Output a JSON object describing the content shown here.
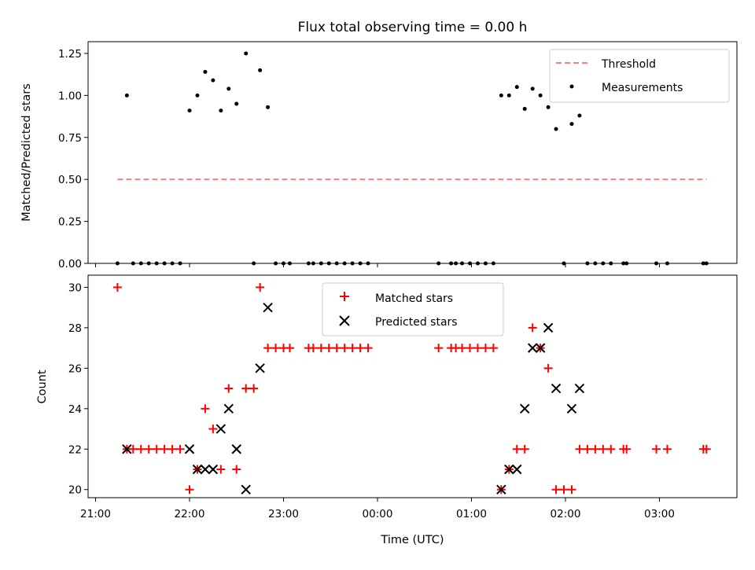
{
  "chart_data": [
    {
      "type": "scatter",
      "title": "Flux total observing time = 0.00 h",
      "xlabel": "",
      "ylabel": "Matched/Predicted stars",
      "xlim": [
        "21:00",
        "03:45"
      ],
      "ylim": [
        0,
        1.32
      ],
      "y_ticks": [
        "0.00",
        "0.25",
        "0.50",
        "0.75",
        "1.00",
        "1.25"
      ],
      "legend": {
        "placement": "top-right",
        "entries": [
          "Threshold",
          "Measurements"
        ]
      },
      "threshold": {
        "name": "Threshold",
        "value": 0.5,
        "x_start": "21:14",
        "x_end": "03:30",
        "color": "#ff7f7f"
      },
      "series": [
        {
          "name": "Measurements",
          "color": "#000000",
          "marker": "dot",
          "points": [
            [
              "21:14",
              0
            ],
            [
              "21:20",
              1.0
            ],
            [
              "21:24",
              0
            ],
            [
              "21:29",
              0
            ],
            [
              "21:34",
              0
            ],
            [
              "21:39",
              0
            ],
            [
              "21:44",
              0
            ],
            [
              "21:49",
              0
            ],
            [
              "21:54",
              0
            ],
            [
              "22:00",
              0.91
            ],
            [
              "22:05",
              1.0
            ],
            [
              "22:10",
              1.14
            ],
            [
              "22:15",
              1.09
            ],
            [
              "22:20",
              0.91
            ],
            [
              "22:25",
              1.04
            ],
            [
              "22:30",
              0.95
            ],
            [
              "22:36",
              1.25
            ],
            [
              "22:41",
              0
            ],
            [
              "22:45",
              1.15
            ],
            [
              "22:50",
              0.93
            ],
            [
              "22:55",
              0
            ],
            [
              "23:00",
              0
            ],
            [
              "23:04",
              0
            ],
            [
              "23:16",
              0
            ],
            [
              "23:19",
              0
            ],
            [
              "23:24",
              0
            ],
            [
              "23:29",
              0
            ],
            [
              "23:34",
              0
            ],
            [
              "23:39",
              0
            ],
            [
              "23:44",
              0
            ],
            [
              "23:49",
              0
            ],
            [
              "23:54",
              0
            ],
            [
              "00:39",
              0
            ],
            [
              "00:47",
              0
            ],
            [
              "00:50",
              0
            ],
            [
              "00:54",
              0
            ],
            [
              "00:59",
              0
            ],
            [
              "01:04",
              0
            ],
            [
              "01:09",
              0
            ],
            [
              "01:14",
              0
            ],
            [
              "01:19",
              1.0
            ],
            [
              "01:24",
              1.0
            ],
            [
              "01:29",
              1.05
            ],
            [
              "01:34",
              0.92
            ],
            [
              "01:39",
              1.04
            ],
            [
              "01:44",
              1.0
            ],
            [
              "01:49",
              0.93
            ],
            [
              "01:54",
              0.8
            ],
            [
              "01:59",
              0
            ],
            [
              "02:04",
              0.83
            ],
            [
              "02:09",
              0.88
            ],
            [
              "02:14",
              0
            ],
            [
              "02:19",
              0
            ],
            [
              "02:24",
              0
            ],
            [
              "02:29",
              0
            ],
            [
              "02:37",
              0
            ],
            [
              "02:39",
              0
            ],
            [
              "02:58",
              0
            ],
            [
              "03:05",
              0
            ],
            [
              "03:28",
              0
            ],
            [
              "03:30",
              0
            ]
          ]
        }
      ]
    },
    {
      "type": "scatter",
      "title": "",
      "xlabel": "Time (UTC)",
      "ylabel": "Count",
      "xlim": [
        "21:00",
        "03:45"
      ],
      "ylim": [
        19.6,
        30.6
      ],
      "y_ticks": [
        "20",
        "22",
        "24",
        "26",
        "28",
        "30"
      ],
      "x_ticks": [
        "21:00",
        "22:00",
        "23:00",
        "00:00",
        "01:00",
        "02:00",
        "03:00"
      ],
      "legend": {
        "placement": "top-center",
        "entries": [
          "Matched stars",
          "Predicted stars"
        ]
      },
      "series": [
        {
          "name": "Matched stars",
          "color": "#ff0000",
          "marker": "plus",
          "points": [
            [
              "21:14",
              30
            ],
            [
              "21:20",
              22
            ],
            [
              "21:24",
              22
            ],
            [
              "21:29",
              22
            ],
            [
              "21:34",
              22
            ],
            [
              "21:39",
              22
            ],
            [
              "21:44",
              22
            ],
            [
              "21:49",
              22
            ],
            [
              "21:54",
              22
            ],
            [
              "22:00",
              20
            ],
            [
              "22:05",
              21
            ],
            [
              "22:10",
              24
            ],
            [
              "22:15",
              23
            ],
            [
              "22:20",
              21
            ],
            [
              "22:25",
              25
            ],
            [
              "22:30",
              21
            ],
            [
              "22:36",
              25
            ],
            [
              "22:41",
              25
            ],
            [
              "22:45",
              30
            ],
            [
              "22:50",
              27
            ],
            [
              "22:55",
              27
            ],
            [
              "23:00",
              27
            ],
            [
              "23:04",
              27
            ],
            [
              "23:16",
              27
            ],
            [
              "23:19",
              27
            ],
            [
              "23:24",
              27
            ],
            [
              "23:29",
              27
            ],
            [
              "23:34",
              27
            ],
            [
              "23:39",
              27
            ],
            [
              "23:44",
              27
            ],
            [
              "23:49",
              27
            ],
            [
              "23:54",
              27
            ],
            [
              "00:39",
              27
            ],
            [
              "00:47",
              27
            ],
            [
              "00:50",
              27
            ],
            [
              "00:54",
              27
            ],
            [
              "00:59",
              27
            ],
            [
              "01:04",
              27
            ],
            [
              "01:09",
              27
            ],
            [
              "01:14",
              27
            ],
            [
              "01:19",
              20
            ],
            [
              "01:24",
              21
            ],
            [
              "01:29",
              22
            ],
            [
              "01:34",
              22
            ],
            [
              "01:39",
              28
            ],
            [
              "01:44",
              27
            ],
            [
              "01:49",
              26
            ],
            [
              "01:54",
              20
            ],
            [
              "01:59",
              20
            ],
            [
              "02:04",
              20
            ],
            [
              "02:09",
              22
            ],
            [
              "02:14",
              22
            ],
            [
              "02:19",
              22
            ],
            [
              "02:24",
              22
            ],
            [
              "02:29",
              22
            ],
            [
              "02:37",
              22
            ],
            [
              "02:39",
              22
            ],
            [
              "02:58",
              22
            ],
            [
              "03:05",
              22
            ],
            [
              "03:28",
              22
            ],
            [
              "03:30",
              22
            ]
          ]
        },
        {
          "name": "Predicted stars",
          "color": "#000000",
          "marker": "x",
          "points": [
            [
              "21:20",
              22
            ],
            [
              "22:00",
              22
            ],
            [
              "22:05",
              21
            ],
            [
              "22:10",
              21
            ],
            [
              "22:15",
              21
            ],
            [
              "22:20",
              23
            ],
            [
              "22:25",
              24
            ],
            [
              "22:30",
              22
            ],
            [
              "22:36",
              20
            ],
            [
              "22:45",
              26
            ],
            [
              "22:50",
              29
            ],
            [
              "01:19",
              20
            ],
            [
              "01:24",
              21
            ],
            [
              "01:29",
              21
            ],
            [
              "01:34",
              24
            ],
            [
              "01:39",
              27
            ],
            [
              "01:44",
              27
            ],
            [
              "01:49",
              28
            ],
            [
              "01:54",
              25
            ],
            [
              "02:04",
              24
            ],
            [
              "02:09",
              25
            ]
          ]
        }
      ]
    }
  ]
}
